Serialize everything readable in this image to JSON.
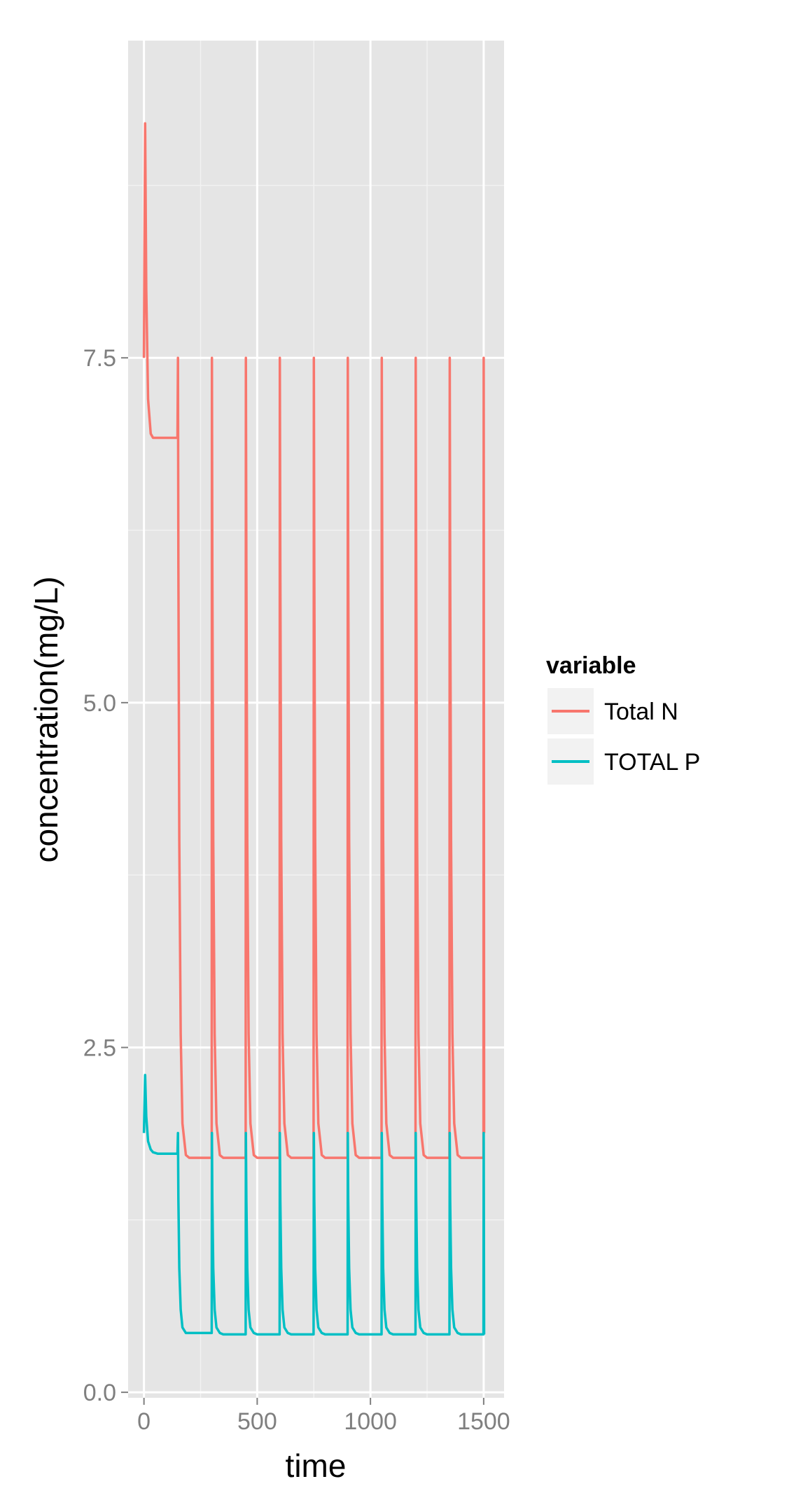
{
  "chart_data": {
    "type": "line",
    "title": "",
    "xlabel": "time",
    "ylabel": "concentration(mg/L)",
    "xlim": [
      -70,
      1590
    ],
    "ylim": [
      -0.04,
      9.8
    ],
    "x_ticks": [
      0,
      500,
      1000,
      1500
    ],
    "x_tick_labels": [
      "0",
      "500",
      "1000",
      "1500"
    ],
    "y_ticks": [
      0.0,
      2.5,
      5.0,
      7.5
    ],
    "y_tick_labels": [
      "0.0",
      "2.5",
      "5.0",
      "7.5"
    ],
    "grid": true,
    "legend_position": "right",
    "legend": {
      "title": "variable",
      "entries": [
        "Total N",
        "TOTAL P"
      ]
    },
    "pulse_times": [
      0,
      150,
      300,
      450,
      600,
      750,
      900,
      1050,
      1200,
      1350,
      1500
    ],
    "series": [
      {
        "name": "Total N",
        "color": "#F8766D",
        "x": [
          0,
          5,
          10,
          18,
          30,
          40,
          60,
          100,
          148,
          150,
          152,
          156,
          162,
          170,
          185,
          200,
          240,
          299,
          300,
          302,
          306,
          312,
          320,
          335,
          350,
          449,
          450,
          452,
          456,
          462,
          470,
          485,
          500,
          599,
          600,
          602,
          606,
          612,
          620,
          635,
          650,
          749,
          750,
          752,
          756,
          762,
          770,
          785,
          800,
          899,
          900,
          902,
          906,
          912,
          920,
          935,
          950,
          1049,
          1050,
          1052,
          1056,
          1062,
          1070,
          1085,
          1100,
          1199,
          1200,
          1202,
          1206,
          1212,
          1220,
          1235,
          1250,
          1349,
          1350,
          1352,
          1356,
          1362,
          1370,
          1385,
          1400,
          1499,
          1500,
          1502
        ],
        "y": [
          7.5,
          9.2,
          8.0,
          7.2,
          6.95,
          6.92,
          6.92,
          6.92,
          6.92,
          7.5,
          6.0,
          4.0,
          2.6,
          1.95,
          1.72,
          1.7,
          1.7,
          1.7,
          7.5,
          6.0,
          4.0,
          2.6,
          1.95,
          1.72,
          1.7,
          1.7,
          7.5,
          6.0,
          4.0,
          2.6,
          1.95,
          1.72,
          1.7,
          1.7,
          7.5,
          6.0,
          4.0,
          2.6,
          1.95,
          1.72,
          1.7,
          1.7,
          7.5,
          6.0,
          4.0,
          2.6,
          1.95,
          1.72,
          1.7,
          1.7,
          7.5,
          6.0,
          4.0,
          2.6,
          1.95,
          1.72,
          1.7,
          1.7,
          7.5,
          6.0,
          4.0,
          2.6,
          1.95,
          1.72,
          1.7,
          1.7,
          7.5,
          6.0,
          4.0,
          2.6,
          1.95,
          1.72,
          1.7,
          1.7,
          7.5,
          6.0,
          4.0,
          2.6,
          1.95,
          1.72,
          1.7,
          1.7,
          7.5,
          1.88
        ]
      },
      {
        "name": "TOTAL P",
        "color": "#00BFC4",
        "x": [
          0,
          5,
          10,
          18,
          30,
          40,
          60,
          100,
          148,
          150,
          152,
          156,
          162,
          170,
          185,
          200,
          240,
          299,
          300,
          302,
          306,
          312,
          320,
          335,
          350,
          449,
          450,
          452,
          456,
          462,
          470,
          485,
          500,
          599,
          600,
          602,
          606,
          612,
          620,
          635,
          650,
          749,
          750,
          752,
          756,
          762,
          770,
          785,
          800,
          899,
          900,
          902,
          906,
          912,
          920,
          935,
          950,
          1049,
          1050,
          1052,
          1056,
          1062,
          1070,
          1085,
          1100,
          1199,
          1200,
          1202,
          1206,
          1212,
          1220,
          1235,
          1250,
          1349,
          1350,
          1352,
          1356,
          1362,
          1370,
          1385,
          1400,
          1499,
          1500,
          1502
        ],
        "y": [
          1.88,
          2.3,
          2.0,
          1.82,
          1.76,
          1.74,
          1.73,
          1.73,
          1.73,
          1.88,
          1.4,
          0.9,
          0.6,
          0.47,
          0.43,
          0.43,
          0.43,
          0.43,
          1.88,
          1.4,
          0.9,
          0.6,
          0.47,
          0.43,
          0.42,
          0.42,
          1.88,
          1.4,
          0.9,
          0.6,
          0.47,
          0.43,
          0.42,
          0.42,
          1.88,
          1.4,
          0.9,
          0.6,
          0.47,
          0.43,
          0.42,
          0.42,
          1.88,
          1.4,
          0.9,
          0.6,
          0.47,
          0.43,
          0.42,
          0.42,
          1.88,
          1.4,
          0.9,
          0.6,
          0.47,
          0.43,
          0.42,
          0.42,
          1.88,
          1.4,
          0.9,
          0.6,
          0.47,
          0.43,
          0.42,
          0.42,
          1.88,
          1.4,
          0.9,
          0.6,
          0.47,
          0.43,
          0.42,
          0.42,
          1.88,
          1.4,
          0.9,
          0.6,
          0.47,
          0.43,
          0.42,
          0.42,
          1.88,
          0.42
        ]
      }
    ]
  }
}
